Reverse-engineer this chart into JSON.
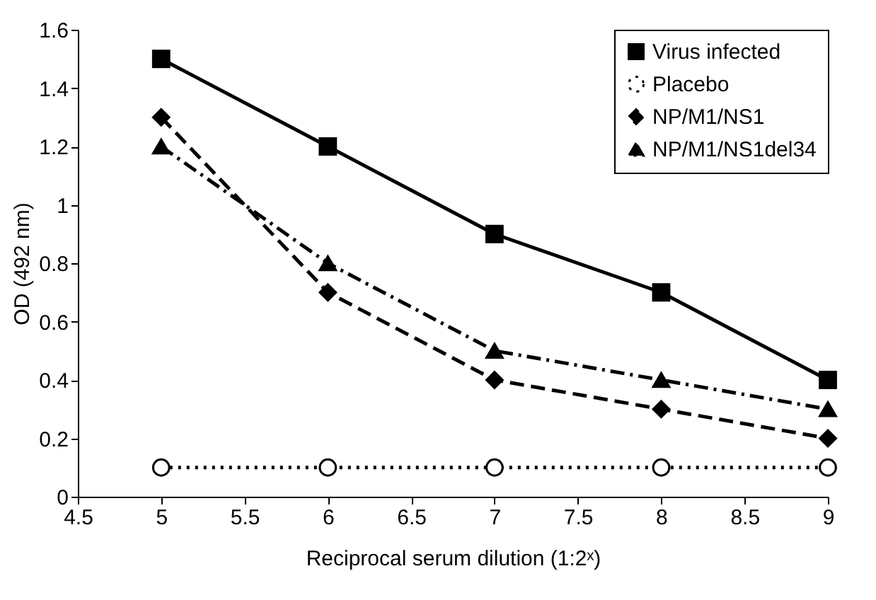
{
  "chart_data": {
    "type": "line",
    "xlabel": "Reciprocal serum dilution (1:2ˣ)",
    "ylabel": "OD (492 nm)",
    "x": [
      5,
      6,
      7,
      8,
      9
    ],
    "series": [
      {
        "name": "Virus infected",
        "color": "#000000",
        "marker": "square",
        "line_style": "solid",
        "values": [
          1.5,
          1.2,
          0.9,
          0.7,
          0.4
        ]
      },
      {
        "name": "Placebo",
        "color": "#000000",
        "marker": "circle",
        "line_style": "dotted",
        "values": [
          0.1,
          0.1,
          0.1,
          0.1,
          0.1
        ]
      },
      {
        "name": "NP/M1/NS1",
        "color": "#000000",
        "marker": "diamond",
        "line_style": "dashed",
        "values": [
          1.3,
          0.7,
          0.4,
          0.3,
          0.2
        ]
      },
      {
        "name": "NP/M1/NS1del34",
        "color": "#000000",
        "marker": "triangle",
        "line_style": "dashdot",
        "values": [
          1.2,
          0.8,
          0.5,
          0.4,
          0.3
        ]
      }
    ],
    "xlim": [
      4.5,
      9
    ],
    "xticks": [
      4.5,
      5,
      5.5,
      6,
      6.5,
      7,
      7.5,
      8,
      8.5,
      9
    ],
    "ylim": [
      0,
      1.6
    ],
    "yticks": [
      0,
      0.2,
      0.4,
      0.6,
      0.8,
      1,
      1.2,
      1.4,
      1.6
    ],
    "grid": false,
    "legend": "top right"
  }
}
